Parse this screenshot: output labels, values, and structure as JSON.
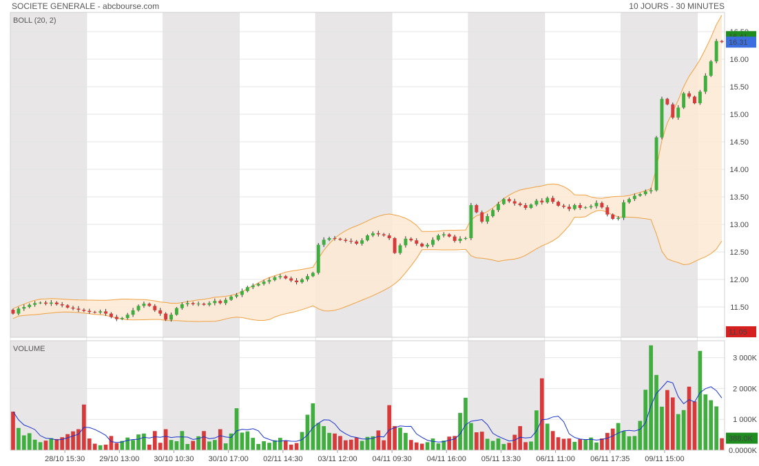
{
  "header": {
    "title": "SOCIETE GENERALE - abcbourse.com",
    "period": "10 JOURS - 30 MINUTES"
  },
  "colors": {
    "up": "#3fae3f",
    "down": "#d63a3a",
    "band_stroke": "#f0a040",
    "band_fill": "#fde9d2",
    "volume_ma": "#1a33cc",
    "shade": "#e8e6e6",
    "grid": "#e4e4e4"
  },
  "chart_data": [
    {
      "type": "candlestick",
      "indicator_label": "BOLL (20, 2)",
      "y_ticks": [
        "16.50",
        "16.00",
        "15.50",
        "15.00",
        "14.50",
        "14.00",
        "13.50",
        "13.00",
        "12.50",
        "12.00",
        "11.50"
      ],
      "ylim": [
        10.95,
        16.85
      ],
      "price_tags": [
        {
          "value": "16.41",
          "color": "#1e8c1e"
        },
        {
          "value": "16.31",
          "color": "#3b6fe0"
        },
        {
          "value": "11.05",
          "color": "#d62020"
        }
      ],
      "day_sessions": [
        {
          "start": 0,
          "end": 14,
          "shaded": true
        },
        {
          "start": 14,
          "end": 28,
          "shaded": false
        },
        {
          "start": 28,
          "end": 42,
          "shaded": true
        },
        {
          "start": 42,
          "end": 56,
          "shaded": false
        },
        {
          "start": 56,
          "end": 70,
          "shaded": true
        },
        {
          "start": 70,
          "end": 84,
          "shaded": false
        },
        {
          "start": 84,
          "end": 98,
          "shaded": true
        },
        {
          "start": 98,
          "end": 112,
          "shaded": false
        },
        {
          "start": 112,
          "end": 126,
          "shaded": true
        },
        {
          "start": 126,
          "end": 133,
          "shaded": false
        }
      ],
      "x_labels": [
        {
          "text": "28/10 15:30",
          "index": 10
        },
        {
          "text": "29/10 13:00",
          "index": 20
        },
        {
          "text": "30/10 10:30",
          "index": 30
        },
        {
          "text": "30/10 17:00",
          "index": 40
        },
        {
          "text": "02/11 14:30",
          "index": 50
        },
        {
          "text": "03/11 12:00",
          "index": 60
        },
        {
          "text": "04/11 09:30",
          "index": 70
        },
        {
          "text": "04/11 16:00",
          "index": 80
        },
        {
          "text": "05/11 13:30",
          "index": 90
        },
        {
          "text": "06/11 11:00",
          "index": 100
        },
        {
          "text": "06/11 17:35",
          "index": 110
        },
        {
          "text": "09/11 15:00",
          "index": 120
        }
      ],
      "closes": [
        11.38,
        11.47,
        11.5,
        11.54,
        11.57,
        11.58,
        11.56,
        11.58,
        11.55,
        11.53,
        11.49,
        11.47,
        11.45,
        11.43,
        11.41,
        11.4,
        11.42,
        11.38,
        11.32,
        11.28,
        11.3,
        11.36,
        11.44,
        11.52,
        11.56,
        11.52,
        11.44,
        11.38,
        11.27,
        11.36,
        11.48,
        11.55,
        11.57,
        11.55,
        11.56,
        11.54,
        11.57,
        11.61,
        11.57,
        11.63,
        11.69,
        11.72,
        11.79,
        11.86,
        11.89,
        11.92,
        11.96,
        11.99,
        12.04,
        12.06,
        12.02,
        11.98,
        11.95,
        12.0,
        12.06,
        12.12,
        12.63,
        12.72,
        12.75,
        12.74,
        12.72,
        12.7,
        12.69,
        12.65,
        12.71,
        12.8,
        12.84,
        12.82,
        12.8,
        12.75,
        12.48,
        12.62,
        12.74,
        12.71,
        12.65,
        12.6,
        12.63,
        12.72,
        12.8,
        12.82,
        12.78,
        12.7,
        12.74,
        12.75,
        13.35,
        13.22,
        13.05,
        13.15,
        13.26,
        13.37,
        13.46,
        13.42,
        13.38,
        13.35,
        13.3,
        13.36,
        13.43,
        13.4,
        13.48,
        13.41,
        13.34,
        13.32,
        13.28,
        13.35,
        13.3,
        13.31,
        13.33,
        13.39,
        13.31,
        13.18,
        13.1,
        13.12,
        13.4,
        13.46,
        13.52,
        13.55,
        13.6,
        13.62,
        14.58,
        15.28,
        15.18,
        14.94,
        15.12,
        15.38,
        15.32,
        15.2,
        15.41,
        15.7,
        15.96,
        16.33,
        16.31
      ]
    },
    {
      "type": "bar",
      "indicator_label": "VOLUME",
      "y_ticks": [
        "3 000K",
        "2 000K",
        "1 000K",
        "0.0000K"
      ],
      "ylim": [
        0,
        3550
      ],
      "volume_tag": {
        "value": "388.0K",
        "color": "#1e8c1e"
      },
      "values": [
        1250,
        720,
        480,
        550,
        340,
        260,
        310,
        390,
        360,
        420,
        520,
        610,
        680,
        1480,
        380,
        210,
        160,
        180,
        460,
        230,
        300,
        410,
        330,
        510,
        540,
        180,
        620,
        240,
        680,
        330,
        290,
        620,
        200,
        300,
        450,
        620,
        280,
        330,
        680,
        220,
        540,
        1360,
        570,
        610,
        400,
        200,
        290,
        240,
        320,
        400,
        310,
        180,
        230,
        590,
        1150,
        1520,
        880,
        780,
        560,
        540,
        460,
        320,
        340,
        410,
        300,
        430,
        450,
        640,
        320,
        1460,
        780,
        730,
        560,
        330,
        250,
        210,
        260,
        380,
        220,
        310,
        440,
        460,
        1210,
        1700,
        880,
        580,
        600,
        370,
        300,
        380,
        200,
        240,
        500,
        780,
        260,
        280,
        1290,
        2330,
        860,
        620,
        420,
        370,
        380,
        270,
        360,
        340,
        410,
        250,
        380,
        560,
        700,
        880,
        620,
        450,
        460,
        950,
        1960,
        3400,
        2440,
        1410,
        1950,
        1710,
        1170,
        1300,
        2060,
        1580,
        3220,
        1810,
        1620,
        1420,
        388
      ]
    }
  ]
}
